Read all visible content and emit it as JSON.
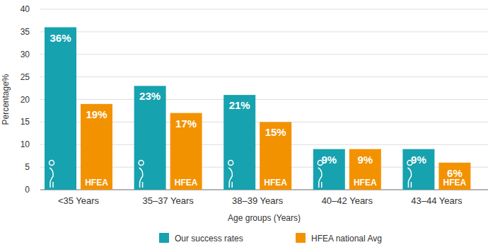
{
  "chart_data": {
    "type": "bar",
    "x_label": "Age groups (Years)",
    "y_label": "Percentage%",
    "categories": [
      "<35 Years",
      "35–37 Years",
      "38–39 Years",
      "40–42 Years",
      "43–44 Years"
    ],
    "series": [
      {
        "name": "Our success rates",
        "color": "#17a2af",
        "values": [
          36,
          23,
          21,
          9,
          9
        ],
        "value_labels": [
          "36%",
          "23%",
          "21%",
          "9%",
          "9%"
        ]
      },
      {
        "name": "HFEA national Avg",
        "color": "#f39200",
        "values": [
          19,
          17,
          15,
          9,
          6
        ],
        "value_labels": [
          "19%",
          "17%",
          "15%",
          "9%",
          "6%"
        ]
      }
    ],
    "annotations": [
      "HFEA"
    ],
    "ylim": [
      0,
      40
    ],
    "yticks": [
      0,
      5,
      10,
      15,
      20,
      25,
      30,
      35,
      40
    ],
    "grid": true,
    "data_labels": true,
    "legend": "bottom"
  }
}
